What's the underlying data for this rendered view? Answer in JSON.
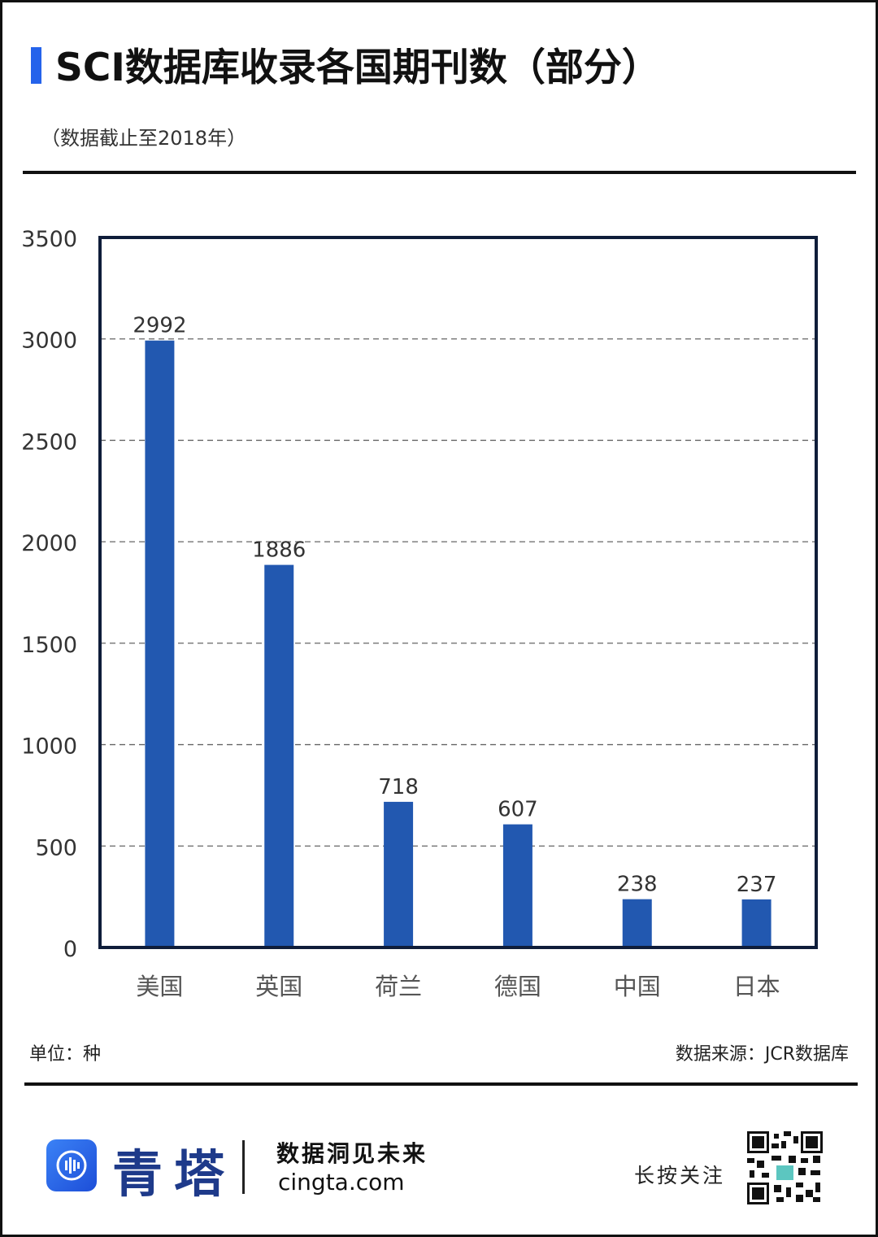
{
  "header": {
    "title": "SCI数据库收录各国期刊数（部分）",
    "subtitle": "（数据截止至2018年）"
  },
  "footer_notes": {
    "unit": "单位：种",
    "source": "数据来源：JCR数据库"
  },
  "brand": {
    "name": "青塔",
    "slogan": "数据洞见未来",
    "domain": "cingta.com",
    "follow": "长按关注"
  },
  "colors": {
    "bar": "#2258b0",
    "title_accent": "#2563eb",
    "frame": "#0f1d3a"
  },
  "chart_data": {
    "type": "bar",
    "categories": [
      "美国",
      "英国",
      "荷兰",
      "德国",
      "中国",
      "日本"
    ],
    "values": [
      2992,
      1886,
      718,
      607,
      238,
      237
    ],
    "ylim": [
      0,
      3500
    ],
    "yticks": [
      0,
      500,
      1000,
      1500,
      2000,
      2500,
      3000,
      3500
    ],
    "grid": "dashed horizontal",
    "title": "",
    "xlabel": "",
    "ylabel": ""
  }
}
